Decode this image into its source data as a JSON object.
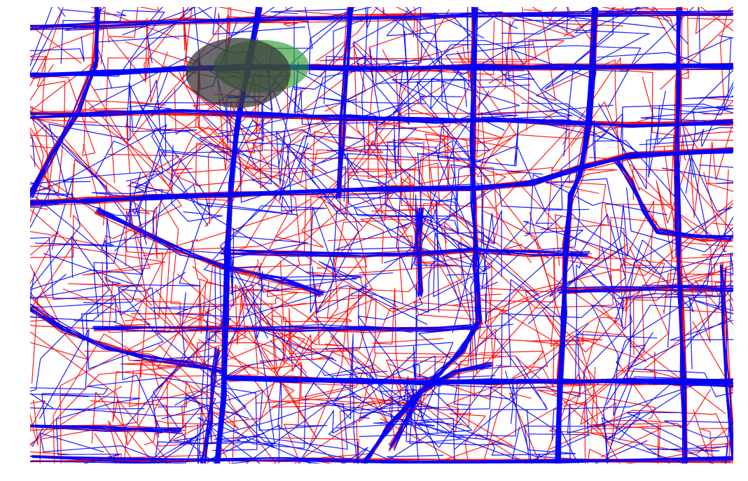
{
  "colors": {
    "red_series": "#ff0000",
    "blue_series": "#0000ff",
    "green_ellipse": "#2ca02c",
    "gray_ellipse": "#3a3a3a",
    "background": "#ffffff"
  },
  "chart_data": {
    "type": "line",
    "title": "",
    "xlabel": "",
    "ylabel": "",
    "grid": false,
    "legend": "none",
    "axes_visible": false,
    "series": [
      {
        "color": "#ff0000",
        "style": "trajectory polylines"
      },
      {
        "color": "#0000ff",
        "style": "trajectory polylines"
      }
    ],
    "overlays": [
      {
        "shape": "ellipse",
        "color": "#2ca02c",
        "opacity": 0.65
      },
      {
        "shape": "ellipse",
        "color": "#3a3a3a",
        "opacity": 0.75
      }
    ]
  }
}
